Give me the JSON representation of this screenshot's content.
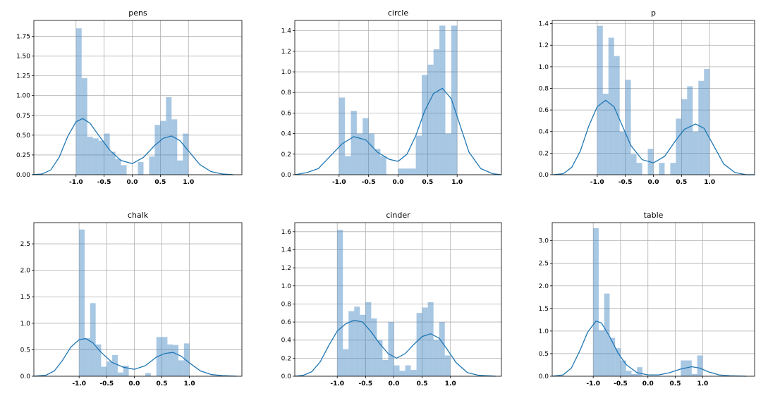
{
  "chart_data": [
    {
      "type": "bar",
      "title": "pens",
      "xlim": [
        -1.75,
        1.95
      ],
      "ylim": [
        0,
        1.95
      ],
      "xticks": [
        "-1.0",
        "-0.5",
        "0.0",
        "0.5",
        "1.0"
      ],
      "xtick_values": [
        -1.0,
        -0.5,
        0.0,
        0.5,
        1.0
      ],
      "yticks": [
        "0.00",
        "0.25",
        "0.50",
        "0.75",
        "1.00",
        "1.25",
        "1.50",
        "1.75"
      ],
      "ytick_values": [
        0,
        0.25,
        0.5,
        0.75,
        1.0,
        1.25,
        1.5,
        1.75
      ],
      "bin_width": 0.1,
      "bins": [
        {
          "x": -1.0,
          "y": 1.85
        },
        {
          "x": -0.9,
          "y": 1.22
        },
        {
          "x": -0.8,
          "y": 0.48
        },
        {
          "x": -0.7,
          "y": 0.46
        },
        {
          "x": -0.6,
          "y": 0.43
        },
        {
          "x": -0.5,
          "y": 0.52
        },
        {
          "x": -0.4,
          "y": 0.29
        },
        {
          "x": -0.3,
          "y": 0.2
        },
        {
          "x": -0.2,
          "y": 0.12
        },
        {
          "x": 0.1,
          "y": 0.16
        },
        {
          "x": 0.3,
          "y": 0.23
        },
        {
          "x": 0.4,
          "y": 0.63
        },
        {
          "x": 0.5,
          "y": 0.68
        },
        {
          "x": 0.6,
          "y": 0.98
        },
        {
          "x": 0.7,
          "y": 0.7
        },
        {
          "x": 0.8,
          "y": 0.18
        },
        {
          "x": 0.9,
          "y": 0.52
        }
      ],
      "kde": [
        {
          "x": -1.78,
          "y": 0.0
        },
        {
          "x": -1.6,
          "y": 0.01
        },
        {
          "x": -1.45,
          "y": 0.06
        },
        {
          "x": -1.3,
          "y": 0.22
        },
        {
          "x": -1.15,
          "y": 0.48
        },
        {
          "x": -1.0,
          "y": 0.67
        },
        {
          "x": -0.88,
          "y": 0.71
        },
        {
          "x": -0.75,
          "y": 0.65
        },
        {
          "x": -0.6,
          "y": 0.5
        },
        {
          "x": -0.4,
          "y": 0.31
        },
        {
          "x": -0.2,
          "y": 0.18
        },
        {
          "x": 0.0,
          "y": 0.14
        },
        {
          "x": 0.2,
          "y": 0.22
        },
        {
          "x": 0.4,
          "y": 0.37
        },
        {
          "x": 0.55,
          "y": 0.46
        },
        {
          "x": 0.7,
          "y": 0.49
        },
        {
          "x": 0.85,
          "y": 0.43
        },
        {
          "x": 1.0,
          "y": 0.3
        },
        {
          "x": 1.2,
          "y": 0.13
        },
        {
          "x": 1.4,
          "y": 0.04
        },
        {
          "x": 1.6,
          "y": 0.01
        },
        {
          "x": 1.8,
          "y": 0.0
        }
      ]
    },
    {
      "type": "bar",
      "title": "circle",
      "xlim": [
        -1.75,
        1.75
      ],
      "ylim": [
        0,
        1.5
      ],
      "xticks": [
        "-1.0",
        "-0.5",
        "0.0",
        "0.5",
        "1.0"
      ],
      "xtick_values": [
        -1.0,
        -0.5,
        0.0,
        0.5,
        1.0
      ],
      "yticks": [
        "0.0",
        "0.2",
        "0.4",
        "0.6",
        "0.8",
        "1.0",
        "1.2",
        "1.4"
      ],
      "ytick_values": [
        0,
        0.2,
        0.4,
        0.6,
        0.8,
        1.0,
        1.2,
        1.4
      ],
      "bin_width": 0.1,
      "bins": [
        {
          "x": -1.0,
          "y": 0.75
        },
        {
          "x": -0.9,
          "y": 0.18
        },
        {
          "x": -0.8,
          "y": 0.62
        },
        {
          "x": -0.7,
          "y": 0.4
        },
        {
          "x": -0.6,
          "y": 0.55
        },
        {
          "x": -0.5,
          "y": 0.4
        },
        {
          "x": -0.4,
          "y": 0.25
        },
        {
          "x": -0.3,
          "y": 0.18
        },
        {
          "x": 0.0,
          "y": 0.06
        },
        {
          "x": 0.1,
          "y": 0.06
        },
        {
          "x": 0.2,
          "y": 0.06
        },
        {
          "x": 0.3,
          "y": 0.38
        },
        {
          "x": 0.4,
          "y": 0.97
        },
        {
          "x": 0.5,
          "y": 1.07
        },
        {
          "x": 0.6,
          "y": 1.22
        },
        {
          "x": 0.7,
          "y": 1.45
        },
        {
          "x": 0.8,
          "y": 0.4
        },
        {
          "x": 0.9,
          "y": 1.45
        }
      ],
      "kde": [
        {
          "x": -1.75,
          "y": 0.0
        },
        {
          "x": -1.55,
          "y": 0.02
        },
        {
          "x": -1.35,
          "y": 0.06
        },
        {
          "x": -1.15,
          "y": 0.18
        },
        {
          "x": -0.95,
          "y": 0.3
        },
        {
          "x": -0.75,
          "y": 0.37
        },
        {
          "x": -0.55,
          "y": 0.34
        },
        {
          "x": -0.35,
          "y": 0.22
        },
        {
          "x": -0.15,
          "y": 0.15
        },
        {
          "x": 0.0,
          "y": 0.13
        },
        {
          "x": 0.15,
          "y": 0.2
        },
        {
          "x": 0.3,
          "y": 0.38
        },
        {
          "x": 0.45,
          "y": 0.62
        },
        {
          "x": 0.6,
          "y": 0.79
        },
        {
          "x": 0.75,
          "y": 0.84
        },
        {
          "x": 0.9,
          "y": 0.74
        },
        {
          "x": 1.05,
          "y": 0.48
        },
        {
          "x": 1.2,
          "y": 0.22
        },
        {
          "x": 1.4,
          "y": 0.06
        },
        {
          "x": 1.6,
          "y": 0.01
        },
        {
          "x": 1.75,
          "y": 0.0
        }
      ]
    },
    {
      "type": "bar",
      "title": "p",
      "xlim": [
        -1.8,
        1.8
      ],
      "ylim": [
        0,
        1.43
      ],
      "xticks": [
        "-1.0",
        "-0.5",
        "0.0",
        "0.5",
        "1.0"
      ],
      "xtick_values": [
        -1.0,
        -0.5,
        0.0,
        0.5,
        1.0
      ],
      "yticks": [
        "0.0",
        "0.2",
        "0.4",
        "0.6",
        "0.8",
        "1.0",
        "1.2",
        "1.4"
      ],
      "ytick_values": [
        0,
        0.2,
        0.4,
        0.6,
        0.8,
        1.0,
        1.2,
        1.4
      ],
      "bin_width": 0.1,
      "bins": [
        {
          "x": -1.0,
          "y": 1.38
        },
        {
          "x": -0.9,
          "y": 0.75
        },
        {
          "x": -0.8,
          "y": 1.27
        },
        {
          "x": -0.7,
          "y": 1.1
        },
        {
          "x": -0.6,
          "y": 0.4
        },
        {
          "x": -0.5,
          "y": 0.88
        },
        {
          "x": -0.4,
          "y": 0.19
        },
        {
          "x": -0.3,
          "y": 0.11
        },
        {
          "x": -0.1,
          "y": 0.24
        },
        {
          "x": 0.1,
          "y": 0.11
        },
        {
          "x": 0.3,
          "y": 0.11
        },
        {
          "x": 0.4,
          "y": 0.52
        },
        {
          "x": 0.5,
          "y": 0.7
        },
        {
          "x": 0.6,
          "y": 0.82
        },
        {
          "x": 0.7,
          "y": 0.4
        },
        {
          "x": 0.8,
          "y": 0.87
        },
        {
          "x": 0.9,
          "y": 0.98
        }
      ],
      "kde": [
        {
          "x": -1.78,
          "y": 0.0
        },
        {
          "x": -1.6,
          "y": 0.01
        },
        {
          "x": -1.45,
          "y": 0.07
        },
        {
          "x": -1.3,
          "y": 0.22
        },
        {
          "x": -1.15,
          "y": 0.45
        },
        {
          "x": -1.0,
          "y": 0.63
        },
        {
          "x": -0.85,
          "y": 0.69
        },
        {
          "x": -0.7,
          "y": 0.63
        },
        {
          "x": -0.55,
          "y": 0.45
        },
        {
          "x": -0.4,
          "y": 0.27
        },
        {
          "x": -0.2,
          "y": 0.14
        },
        {
          "x": 0.0,
          "y": 0.11
        },
        {
          "x": 0.2,
          "y": 0.17
        },
        {
          "x": 0.4,
          "y": 0.32
        },
        {
          "x": 0.55,
          "y": 0.42
        },
        {
          "x": 0.75,
          "y": 0.47
        },
        {
          "x": 0.9,
          "y": 0.43
        },
        {
          "x": 1.05,
          "y": 0.29
        },
        {
          "x": 1.25,
          "y": 0.1
        },
        {
          "x": 1.45,
          "y": 0.02
        },
        {
          "x": 1.65,
          "y": 0.0
        },
        {
          "x": 1.8,
          "y": 0.0
        }
      ]
    },
    {
      "type": "bar",
      "title": "chalk",
      "xlim": [
        -1.82,
        1.95
      ],
      "ylim": [
        0,
        2.9
      ],
      "xticks": [
        "-1.0",
        "-0.5",
        "0.0",
        "0.5",
        "1.0"
      ],
      "xtick_values": [
        -1.0,
        -0.5,
        0.0,
        0.5,
        1.0
      ],
      "yticks": [
        "0.0",
        "0.5",
        "1.0",
        "1.5",
        "2.0",
        "2.5"
      ],
      "ytick_values": [
        0,
        0.5,
        1.0,
        1.5,
        2.0,
        2.5
      ],
      "bin_width": 0.1,
      "bins": [
        {
          "x": -1.0,
          "y": 2.77
        },
        {
          "x": -0.9,
          "y": 0.72
        },
        {
          "x": -0.8,
          "y": 1.38
        },
        {
          "x": -0.7,
          "y": 0.6
        },
        {
          "x": -0.6,
          "y": 0.18
        },
        {
          "x": -0.5,
          "y": 0.28
        },
        {
          "x": -0.4,
          "y": 0.4
        },
        {
          "x": -0.3,
          "y": 0.07
        },
        {
          "x": -0.2,
          "y": 0.2
        },
        {
          "x": 0.2,
          "y": 0.06
        },
        {
          "x": 0.4,
          "y": 0.74
        },
        {
          "x": 0.5,
          "y": 0.74
        },
        {
          "x": 0.6,
          "y": 0.6
        },
        {
          "x": 0.7,
          "y": 0.59
        },
        {
          "x": 0.8,
          "y": 0.3
        },
        {
          "x": 0.9,
          "y": 0.62
        }
      ],
      "kde": [
        {
          "x": -1.82,
          "y": 0.0
        },
        {
          "x": -1.6,
          "y": 0.02
        },
        {
          "x": -1.45,
          "y": 0.1
        },
        {
          "x": -1.3,
          "y": 0.3
        },
        {
          "x": -1.15,
          "y": 0.55
        },
        {
          "x": -1.0,
          "y": 0.69
        },
        {
          "x": -0.88,
          "y": 0.71
        },
        {
          "x": -0.75,
          "y": 0.63
        },
        {
          "x": -0.6,
          "y": 0.45
        },
        {
          "x": -0.4,
          "y": 0.26
        },
        {
          "x": -0.2,
          "y": 0.17
        },
        {
          "x": 0.0,
          "y": 0.13
        },
        {
          "x": 0.2,
          "y": 0.2
        },
        {
          "x": 0.4,
          "y": 0.36
        },
        {
          "x": 0.55,
          "y": 0.43
        },
        {
          "x": 0.7,
          "y": 0.45
        },
        {
          "x": 0.85,
          "y": 0.38
        },
        {
          "x": 1.0,
          "y": 0.25
        },
        {
          "x": 1.2,
          "y": 0.1
        },
        {
          "x": 1.4,
          "y": 0.03
        },
        {
          "x": 1.6,
          "y": 0.01
        },
        {
          "x": 1.85,
          "y": 0.0
        }
      ]
    },
    {
      "type": "bar",
      "title": "cinder",
      "xlim": [
        -1.75,
        1.9
      ],
      "ylim": [
        0,
        1.7
      ],
      "xticks": [
        "-1.0",
        "-0.5",
        "0.0",
        "0.5",
        "1.0"
      ],
      "xtick_values": [
        -1.0,
        -0.5,
        0.0,
        0.5,
        1.0
      ],
      "yticks": [
        "0.0",
        "0.2",
        "0.4",
        "0.6",
        "0.8",
        "1.0",
        "1.2",
        "1.4",
        "1.6"
      ],
      "ytick_values": [
        0,
        0.2,
        0.4,
        0.6,
        0.8,
        1.0,
        1.2,
        1.4,
        1.6
      ],
      "bin_width": 0.1,
      "bins": [
        {
          "x": -1.0,
          "y": 1.62
        },
        {
          "x": -0.9,
          "y": 0.3
        },
        {
          "x": -0.8,
          "y": 0.72
        },
        {
          "x": -0.7,
          "y": 0.77
        },
        {
          "x": -0.6,
          "y": 0.68
        },
        {
          "x": -0.5,
          "y": 0.82
        },
        {
          "x": -0.4,
          "y": 0.64
        },
        {
          "x": -0.3,
          "y": 0.4
        },
        {
          "x": -0.2,
          "y": 0.18
        },
        {
          "x": -0.1,
          "y": 0.6
        },
        {
          "x": 0.0,
          "y": 0.12
        },
        {
          "x": 0.1,
          "y": 0.06
        },
        {
          "x": 0.2,
          "y": 0.12
        },
        {
          "x": 0.3,
          "y": 0.07
        },
        {
          "x": 0.4,
          "y": 0.7
        },
        {
          "x": 0.5,
          "y": 0.76
        },
        {
          "x": 0.6,
          "y": 0.82
        },
        {
          "x": 0.7,
          "y": 0.4
        },
        {
          "x": 0.8,
          "y": 0.6
        },
        {
          "x": 0.9,
          "y": 0.23
        }
      ],
      "kde": [
        {
          "x": -1.75,
          "y": 0.0
        },
        {
          "x": -1.6,
          "y": 0.01
        },
        {
          "x": -1.45,
          "y": 0.05
        },
        {
          "x": -1.3,
          "y": 0.16
        },
        {
          "x": -1.15,
          "y": 0.34
        },
        {
          "x": -1.0,
          "y": 0.5
        },
        {
          "x": -0.85,
          "y": 0.58
        },
        {
          "x": -0.7,
          "y": 0.62
        },
        {
          "x": -0.55,
          "y": 0.6
        },
        {
          "x": -0.4,
          "y": 0.49
        },
        {
          "x": -0.25,
          "y": 0.36
        },
        {
          "x": -0.1,
          "y": 0.25
        },
        {
          "x": 0.05,
          "y": 0.2
        },
        {
          "x": 0.2,
          "y": 0.25
        },
        {
          "x": 0.35,
          "y": 0.35
        },
        {
          "x": 0.5,
          "y": 0.44
        },
        {
          "x": 0.65,
          "y": 0.47
        },
        {
          "x": 0.8,
          "y": 0.42
        },
        {
          "x": 0.95,
          "y": 0.29
        },
        {
          "x": 1.1,
          "y": 0.15
        },
        {
          "x": 1.3,
          "y": 0.04
        },
        {
          "x": 1.5,
          "y": 0.01
        },
        {
          "x": 1.8,
          "y": 0.0
        }
      ]
    },
    {
      "type": "bar",
      "title": "table",
      "xlim": [
        -1.75,
        1.95
      ],
      "ylim": [
        0,
        3.4
      ],
      "xticks": [
        "-1.0",
        "-0.5",
        "0.0",
        "0.5",
        "1.0"
      ],
      "xtick_values": [
        -1.0,
        -0.5,
        0.0,
        0.5,
        1.0
      ],
      "yticks": [
        "0.0",
        "0.5",
        "1.0",
        "1.5",
        "2.0",
        "2.5",
        "3.0"
      ],
      "ytick_values": [
        0,
        0.5,
        1.0,
        1.5,
        2.0,
        2.5,
        3.0
      ],
      "bin_width": 0.1,
      "bins": [
        {
          "x": -1.0,
          "y": 3.28
        },
        {
          "x": -0.9,
          "y": 1.02
        },
        {
          "x": -0.8,
          "y": 1.83
        },
        {
          "x": -0.7,
          "y": 0.85
        },
        {
          "x": -0.6,
          "y": 0.62
        },
        {
          "x": -0.5,
          "y": 0.35
        },
        {
          "x": -0.4,
          "y": 0.12
        },
        {
          "x": -0.3,
          "y": 0.05
        },
        {
          "x": -0.2,
          "y": 0.2
        },
        {
          "x": 0.6,
          "y": 0.35
        },
        {
          "x": 0.7,
          "y": 0.35
        },
        {
          "x": 0.8,
          "y": 0.05
        },
        {
          "x": 0.9,
          "y": 0.46
        }
      ],
      "kde": [
        {
          "x": -1.75,
          "y": 0.0
        },
        {
          "x": -1.55,
          "y": 0.03
        },
        {
          "x": -1.4,
          "y": 0.18
        },
        {
          "x": -1.25,
          "y": 0.55
        },
        {
          "x": -1.1,
          "y": 0.98
        },
        {
          "x": -0.95,
          "y": 1.22
        },
        {
          "x": -0.85,
          "y": 1.18
        },
        {
          "x": -0.7,
          "y": 0.88
        },
        {
          "x": -0.55,
          "y": 0.52
        },
        {
          "x": -0.4,
          "y": 0.26
        },
        {
          "x": -0.2,
          "y": 0.08
        },
        {
          "x": 0.0,
          "y": 0.03
        },
        {
          "x": 0.2,
          "y": 0.03
        },
        {
          "x": 0.4,
          "y": 0.08
        },
        {
          "x": 0.6,
          "y": 0.16
        },
        {
          "x": 0.8,
          "y": 0.21
        },
        {
          "x": 0.95,
          "y": 0.18
        },
        {
          "x": 1.1,
          "y": 0.1
        },
        {
          "x": 1.3,
          "y": 0.03
        },
        {
          "x": 1.5,
          "y": 0.01
        },
        {
          "x": 1.8,
          "y": 0.0
        }
      ]
    }
  ]
}
